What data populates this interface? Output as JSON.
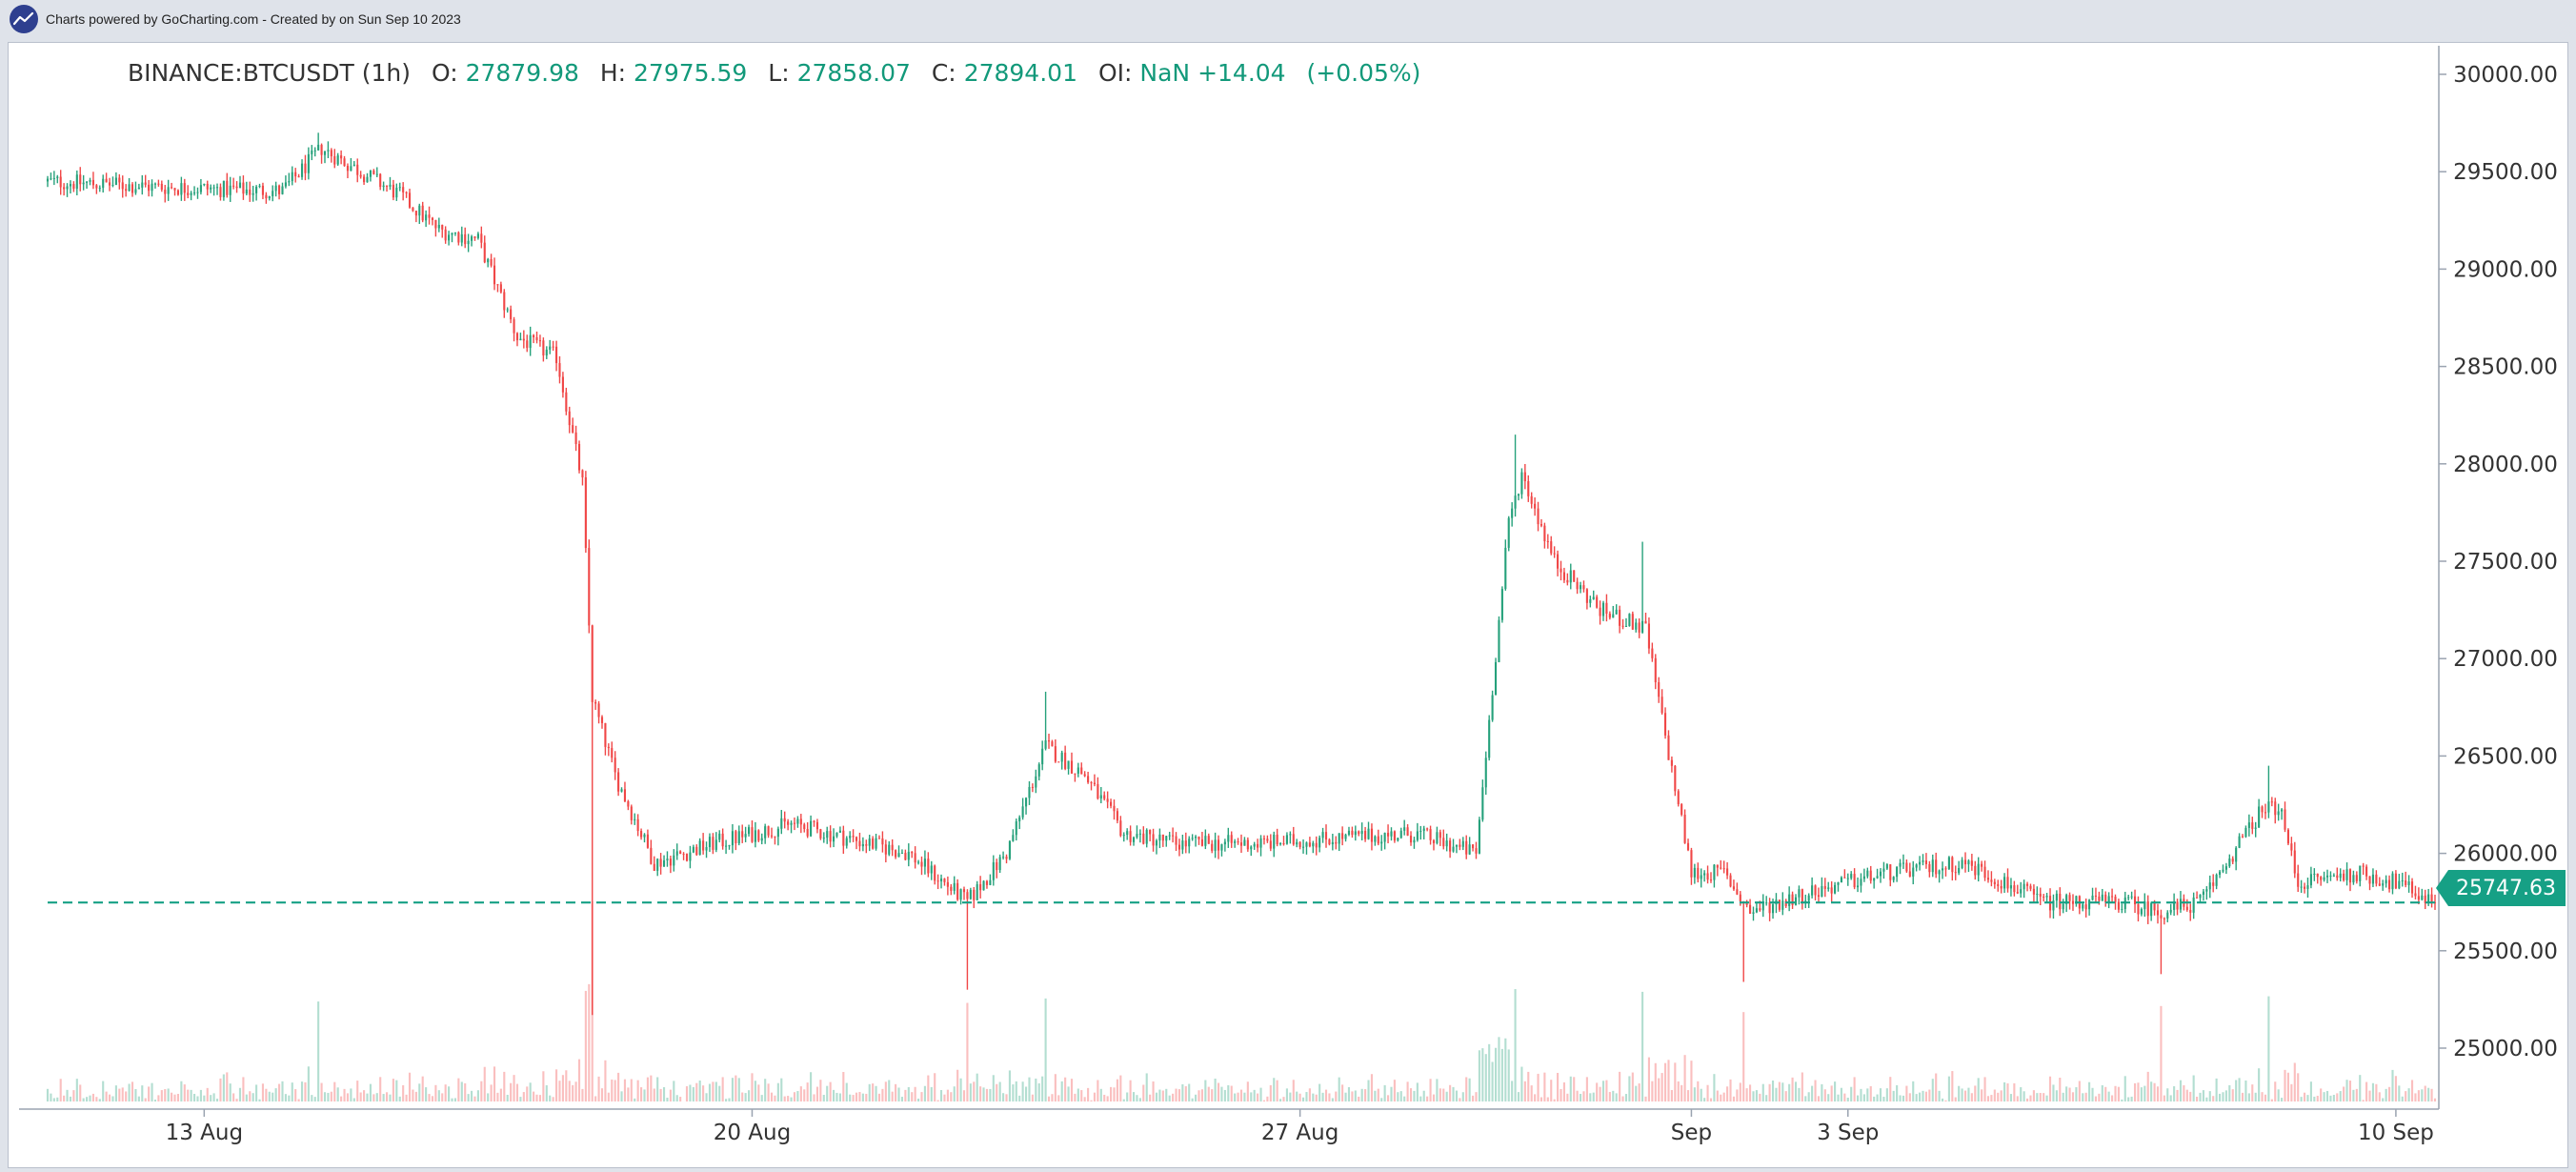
{
  "credit": {
    "text": "Charts powered by GoCharting.com - Created by  on Sun Sep 10 2023"
  },
  "legend": {
    "symbol": "BINANCE:BTCUSDT (1h)",
    "o_label": "O:",
    "o": "27879.98",
    "h_label": "H:",
    "h": "27975.59",
    "l_label": "L:",
    "l": "27858.07",
    "c_label": "C:",
    "c": "27894.01",
    "oi_label": "OI:",
    "oi": "NaN",
    "change": "+14.04",
    "change_pct": "(+0.05%)"
  },
  "last_price": "25747.63",
  "chart_data": {
    "type": "candlestick",
    "interval": "1h",
    "symbol": "BINANCE:BTCUSDT",
    "ylim": [
      24700,
      30250
    ],
    "y_ticks": [
      25000,
      25500,
      26000,
      26500,
      27000,
      27500,
      28000,
      28500,
      29000,
      29500,
      30000
    ],
    "y_tick_labels": [
      "25000.00",
      "25500.00",
      "26000.00",
      "26500.00",
      "27000.00",
      "27500.00",
      "28000.00",
      "28500.00",
      "29000.00",
      "29500.00",
      "30000.00"
    ],
    "x_range": [
      "2023-08-11 00:00",
      "2023-09-10 12:00"
    ],
    "x_ticks": [
      {
        "date": "2023-08-13",
        "label": "13 Aug"
      },
      {
        "date": "2023-08-20",
        "label": "20 Aug"
      },
      {
        "date": "2023-08-27",
        "label": "27 Aug"
      },
      {
        "date": "2023-09-01",
        "label": "Sep"
      },
      {
        "date": "2023-09-03",
        "label": "3 Sep"
      },
      {
        "date": "2023-09-10",
        "label": "10 Sep"
      }
    ],
    "price_path": [
      [
        "2023-08-11 00:00",
        29450
      ],
      [
        "2023-08-12 12:00",
        29420
      ],
      [
        "2023-08-14 00:00",
        29400
      ],
      [
        "2023-08-14 12:00",
        29620
      ],
      [
        "2023-08-15 12:00",
        29380
      ],
      [
        "2023-08-16 00:00",
        29200
      ],
      [
        "2023-08-16 12:00",
        29150
      ],
      [
        "2023-08-17 00:00",
        28650
      ],
      [
        "2023-08-17 12:00",
        28550
      ],
      [
        "2023-08-17 20:00",
        27900
      ],
      [
        "2023-08-17 23:00",
        26800
      ],
      [
        "2023-08-18 06:00",
        26400
      ],
      [
        "2023-08-18 18:00",
        25950
      ],
      [
        "2023-08-19 12:00",
        26050
      ],
      [
        "2023-08-20 12:00",
        26150
      ],
      [
        "2023-08-21 12:00",
        26050
      ],
      [
        "2023-08-22 00:00",
        26000
      ],
      [
        "2023-08-22 18:00",
        25750
      ],
      [
        "2023-08-23 06:00",
        26000
      ],
      [
        "2023-08-23 18:00",
        26550
      ],
      [
        "2023-08-24 06:00",
        26400
      ],
      [
        "2023-08-24 18:00",
        26100
      ],
      [
        "2023-08-25 12:00",
        26050
      ],
      [
        "2023-08-26 12:00",
        26050
      ],
      [
        "2023-08-27 12:00",
        26080
      ],
      [
        "2023-08-28 12:00",
        26100
      ],
      [
        "2023-08-29 06:00",
        26000
      ],
      [
        "2023-08-29 16:00",
        27700
      ],
      [
        "2023-08-29 20:00",
        27950
      ],
      [
        "2023-08-30 06:00",
        27500
      ],
      [
        "2023-08-30 20:00",
        27250
      ],
      [
        "2023-08-31 10:00",
        27150
      ],
      [
        "2023-08-31 16:00",
        26600
      ],
      [
        "2023-09-01 00:00",
        25900
      ],
      [
        "2023-09-01 10:00",
        25900
      ],
      [
        "2023-09-01 18:00",
        25700
      ],
      [
        "2023-09-02 12:00",
        25800
      ],
      [
        "2023-09-03 12:00",
        25900
      ],
      [
        "2023-09-04 12:00",
        25950
      ],
      [
        "2023-09-05 12:00",
        25750
      ],
      [
        "2023-09-06 12:00",
        25750
      ],
      [
        "2023-09-07 00:00",
        25700
      ],
      [
        "2023-09-07 12:00",
        25750
      ],
      [
        "2023-09-08 06:00",
        26200
      ],
      [
        "2023-09-08 12:00",
        26250
      ],
      [
        "2023-09-08 18:00",
        25850
      ],
      [
        "2023-09-09 12:00",
        25900
      ],
      [
        "2023-09-10 00:00",
        25850
      ],
      [
        "2023-09-10 12:00",
        25747.63
      ]
    ],
    "notable_wicks": [
      {
        "time": "2023-08-14 11:00",
        "high": 29700
      },
      {
        "time": "2023-08-17 23:00",
        "low": 25170
      },
      {
        "time": "2023-08-22 18:00",
        "low": 25300
      },
      {
        "time": "2023-08-23 18:00",
        "high": 26830
      },
      {
        "time": "2023-08-29 18:00",
        "high": 28150
      },
      {
        "time": "2023-08-31 09:00",
        "high": 27600
      },
      {
        "time": "2023-09-01 16:00",
        "low": 25340
      },
      {
        "time": "2023-09-07 00:00",
        "low": 25380
      },
      {
        "time": "2023-09-08 09:00",
        "high": 26450
      }
    ],
    "current_price_line": 25747.63,
    "up_color": "#26a17b",
    "down_color": "#f04747",
    "price_line_color": "#16a085",
    "grid": false,
    "volume_pane": true
  },
  "colors": {
    "frame_bg": "#dfe3ea",
    "legend_value": "#12997a",
    "brand": "#2e3f8f"
  }
}
